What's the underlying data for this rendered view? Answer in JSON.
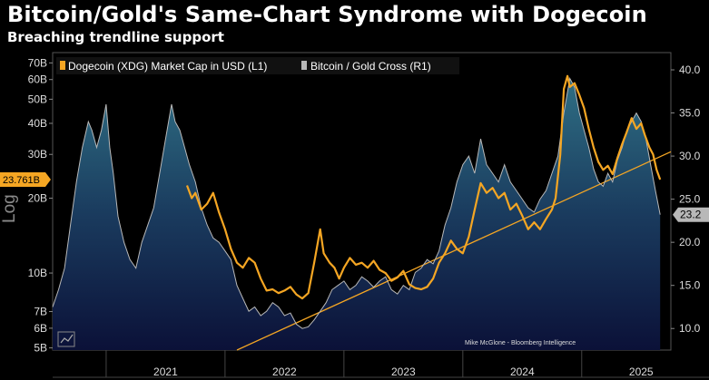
{
  "title": "Bitcoin/Gold's Same-Chart Syndrome with Dogecoin",
  "subtitle": "Breaching trendline support",
  "credit": "Mike McGlone - Bloomberg Intelligence",
  "chart_data": {
    "type": "line",
    "x_range": [
      2020.55,
      2025.75
    ],
    "x_ticks": [
      {
        "label": "2021",
        "value": 2021.0
      },
      {
        "label": "2022",
        "value": 2022.0
      },
      {
        "label": "2023",
        "value": 2023.0
      },
      {
        "label": "2024",
        "value": 2024.0
      },
      {
        "label": "2025",
        "value": 2025.0
      }
    ],
    "left_axis": {
      "label": "Log",
      "scale": "log",
      "range": [
        4.9,
        77
      ],
      "unit": "USD billions",
      "ticks": [
        {
          "label": "70B",
          "value": 70
        },
        {
          "label": "60B",
          "value": 60
        },
        {
          "label": "50B",
          "value": 50
        },
        {
          "label": "40B",
          "value": 40
        },
        {
          "label": "30B",
          "value": 30
        },
        {
          "label": "20B",
          "value": 20
        },
        {
          "label": "10B",
          "value": 10
        },
        {
          "label": "7B",
          "value": 7
        },
        {
          "label": "6B",
          "value": 6
        },
        {
          "label": "5B",
          "value": 5
        }
      ]
    },
    "right_axis": {
      "scale": "linear",
      "range": [
        7.5,
        42.0
      ],
      "ticks": [
        {
          "label": "40.0",
          "value": 40
        },
        {
          "label": "35.0",
          "value": 35
        },
        {
          "label": "30.0",
          "value": 30
        },
        {
          "label": "25.0",
          "value": 25
        },
        {
          "label": "20.0",
          "value": 20
        },
        {
          "label": "15.0",
          "value": 15
        },
        {
          "label": "10.0",
          "value": 10
        }
      ]
    },
    "series": [
      {
        "name": "Dogecoin (XDG) Market Cap in USD (L1)",
        "axis": "left",
        "color": "#f5a623",
        "last_value": 23.761,
        "last_label": "23.761B",
        "points": [
          [
            2021.68,
            22.5
          ],
          [
            2021.72,
            20
          ],
          [
            2021.75,
            21
          ],
          [
            2021.8,
            18
          ],
          [
            2021.85,
            19
          ],
          [
            2021.9,
            21
          ],
          [
            2021.95,
            17.5
          ],
          [
            2022.0,
            15
          ],
          [
            2022.05,
            12.5
          ],
          [
            2022.1,
            11
          ],
          [
            2022.15,
            10.5
          ],
          [
            2022.2,
            11.5
          ],
          [
            2022.25,
            11
          ],
          [
            2022.3,
            9.5
          ],
          [
            2022.35,
            8.5
          ],
          [
            2022.4,
            8.6
          ],
          [
            2022.45,
            8.3
          ],
          [
            2022.5,
            8.5
          ],
          [
            2022.55,
            8.8
          ],
          [
            2022.6,
            8.2
          ],
          [
            2022.65,
            7.9
          ],
          [
            2022.7,
            8.3
          ],
          [
            2022.75,
            11
          ],
          [
            2022.8,
            15
          ],
          [
            2022.83,
            12
          ],
          [
            2022.88,
            11
          ],
          [
            2022.92,
            10.5
          ],
          [
            2022.96,
            9.5
          ],
          [
            2023.0,
            10.5
          ],
          [
            2023.05,
            11.5
          ],
          [
            2023.1,
            10.8
          ],
          [
            2023.15,
            11
          ],
          [
            2023.2,
            10.5
          ],
          [
            2023.25,
            11.2
          ],
          [
            2023.3,
            10.3
          ],
          [
            2023.35,
            10
          ],
          [
            2023.4,
            9.3
          ],
          [
            2023.45,
            9.6
          ],
          [
            2023.5,
            10.2
          ],
          [
            2023.55,
            9
          ],
          [
            2023.6,
            8.7
          ],
          [
            2023.65,
            8.6
          ],
          [
            2023.7,
            8.8
          ],
          [
            2023.75,
            9.5
          ],
          [
            2023.8,
            11
          ],
          [
            2023.85,
            12
          ],
          [
            2023.9,
            13.5
          ],
          [
            2023.95,
            12.5
          ],
          [
            2024.0,
            12
          ],
          [
            2024.05,
            14
          ],
          [
            2024.1,
            18
          ],
          [
            2024.15,
            23
          ],
          [
            2024.2,
            21
          ],
          [
            2024.25,
            22
          ],
          [
            2024.3,
            20
          ],
          [
            2024.35,
            21
          ],
          [
            2024.4,
            18
          ],
          [
            2024.45,
            19
          ],
          [
            2024.5,
            17
          ],
          [
            2024.55,
            15
          ],
          [
            2024.6,
            16
          ],
          [
            2024.65,
            15
          ],
          [
            2024.7,
            16.5
          ],
          [
            2024.75,
            18
          ],
          [
            2024.78,
            20
          ],
          [
            2024.82,
            30
          ],
          [
            2024.85,
            55
          ],
          [
            2024.88,
            62
          ],
          [
            2024.9,
            56
          ],
          [
            2024.94,
            58
          ],
          [
            2024.98,
            52
          ],
          [
            2025.02,
            46
          ],
          [
            2025.06,
            38
          ],
          [
            2025.1,
            32
          ],
          [
            2025.14,
            28
          ],
          [
            2025.18,
            26
          ],
          [
            2025.22,
            27
          ],
          [
            2025.26,
            25
          ],
          [
            2025.3,
            29
          ],
          [
            2025.34,
            33
          ],
          [
            2025.38,
            37
          ],
          [
            2025.42,
            42
          ],
          [
            2025.46,
            38
          ],
          [
            2025.5,
            40
          ],
          [
            2025.53,
            36
          ],
          [
            2025.57,
            32
          ],
          [
            2025.6,
            30
          ],
          [
            2025.63,
            26
          ],
          [
            2025.66,
            23.761
          ]
        ]
      },
      {
        "name": "Bitcoin / Gold Cross (R1)",
        "axis": "right",
        "color": "#b8b8b8",
        "last_value": 23.2,
        "last_label": "23.2",
        "points": [
          [
            2020.55,
            12.5
          ],
          [
            2020.6,
            14.5
          ],
          [
            2020.65,
            17
          ],
          [
            2020.7,
            22
          ],
          [
            2020.75,
            27
          ],
          [
            2020.8,
            31
          ],
          [
            2020.85,
            34
          ],
          [
            2020.88,
            33
          ],
          [
            2020.92,
            31
          ],
          [
            2020.96,
            33
          ],
          [
            2021.0,
            36
          ],
          [
            2021.03,
            31
          ],
          [
            2021.06,
            28
          ],
          [
            2021.1,
            23
          ],
          [
            2021.15,
            20
          ],
          [
            2021.2,
            18
          ],
          [
            2021.25,
            17
          ],
          [
            2021.3,
            20
          ],
          [
            2021.35,
            22
          ],
          [
            2021.4,
            24
          ],
          [
            2021.45,
            28
          ],
          [
            2021.5,
            32
          ],
          [
            2021.55,
            36
          ],
          [
            2021.58,
            34
          ],
          [
            2021.62,
            33
          ],
          [
            2021.66,
            31
          ],
          [
            2021.7,
            29
          ],
          [
            2021.75,
            27
          ],
          [
            2021.8,
            24
          ],
          [
            2021.85,
            22
          ],
          [
            2021.9,
            20.5
          ],
          [
            2021.95,
            20
          ],
          [
            2022.0,
            19
          ],
          [
            2022.05,
            18
          ],
          [
            2022.1,
            15
          ],
          [
            2022.15,
            13.5
          ],
          [
            2022.2,
            12
          ],
          [
            2022.25,
            12.5
          ],
          [
            2022.3,
            11.5
          ],
          [
            2022.35,
            12
          ],
          [
            2022.4,
            13
          ],
          [
            2022.45,
            12.5
          ],
          [
            2022.5,
            11.5
          ],
          [
            2022.55,
            11.8
          ],
          [
            2022.6,
            10.5
          ],
          [
            2022.65,
            10
          ],
          [
            2022.7,
            10.2
          ],
          [
            2022.75,
            11
          ],
          [
            2022.8,
            12
          ],
          [
            2022.85,
            13
          ],
          [
            2022.9,
            14.5
          ],
          [
            2022.95,
            15
          ],
          [
            2023.0,
            15.5
          ],
          [
            2023.05,
            14.5
          ],
          [
            2023.1,
            15
          ],
          [
            2023.15,
            16
          ],
          [
            2023.2,
            15.5
          ],
          [
            2023.25,
            14.8
          ],
          [
            2023.3,
            15.5
          ],
          [
            2023.35,
            16
          ],
          [
            2023.4,
            14.5
          ],
          [
            2023.45,
            14
          ],
          [
            2023.5,
            15
          ],
          [
            2023.55,
            14.5
          ],
          [
            2023.6,
            16.5
          ],
          [
            2023.65,
            17
          ],
          [
            2023.7,
            18
          ],
          [
            2023.75,
            17.5
          ],
          [
            2023.8,
            19
          ],
          [
            2023.85,
            22
          ],
          [
            2023.9,
            24
          ],
          [
            2023.95,
            27
          ],
          [
            2024.0,
            29
          ],
          [
            2024.05,
            30
          ],
          [
            2024.1,
            28
          ],
          [
            2024.15,
            32
          ],
          [
            2024.2,
            29
          ],
          [
            2024.25,
            28
          ],
          [
            2024.3,
            27
          ],
          [
            2024.35,
            29
          ],
          [
            2024.4,
            27
          ],
          [
            2024.45,
            26
          ],
          [
            2024.5,
            25
          ],
          [
            2024.55,
            24
          ],
          [
            2024.6,
            23.5
          ],
          [
            2024.65,
            25
          ],
          [
            2024.7,
            26
          ],
          [
            2024.75,
            28
          ],
          [
            2024.8,
            30
          ],
          [
            2024.85,
            35
          ],
          [
            2024.9,
            39
          ],
          [
            2024.94,
            38
          ],
          [
            2024.98,
            35
          ],
          [
            2025.02,
            33
          ],
          [
            2025.06,
            31
          ],
          [
            2025.1,
            28.5
          ],
          [
            2025.14,
            27
          ],
          [
            2025.18,
            26.5
          ],
          [
            2025.22,
            28
          ],
          [
            2025.26,
            27
          ],
          [
            2025.3,
            29.5
          ],
          [
            2025.34,
            31
          ],
          [
            2025.38,
            33
          ],
          [
            2025.42,
            34
          ],
          [
            2025.46,
            35
          ],
          [
            2025.5,
            34
          ],
          [
            2025.54,
            32
          ],
          [
            2025.58,
            29
          ],
          [
            2025.62,
            26
          ],
          [
            2025.66,
            23.2
          ]
        ]
      }
    ],
    "annotations": [
      {
        "type": "trendline",
        "axis": "right",
        "color": "#f5a623",
        "from": [
          2022.1,
          7.5
        ],
        "to": [
          2025.75,
          30.5
        ]
      }
    ],
    "legend": {
      "position": "top-left",
      "items": [
        "Dogecoin (XDG) Market Cap in USD (L1)",
        "Bitcoin / Gold Cross (R1)"
      ]
    }
  }
}
